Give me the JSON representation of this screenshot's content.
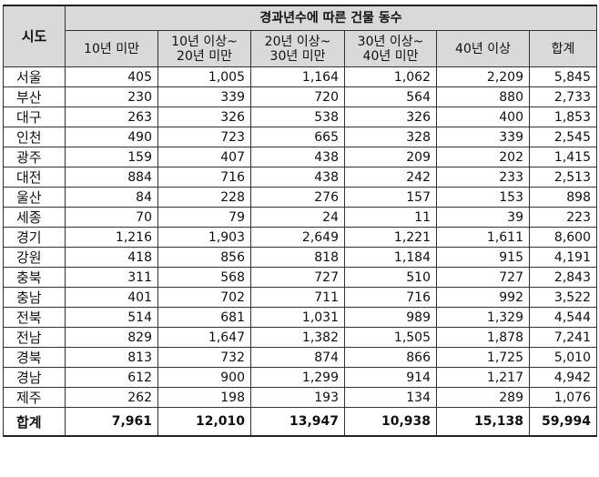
{
  "table": {
    "corner_header": "시도",
    "group_header": "경과년수에 따른 건물 동수",
    "columns": [
      [
        "10년 미만"
      ],
      [
        "10년 이상~",
        "20년 미만"
      ],
      [
        "20년 이상~",
        "30년 미만"
      ],
      [
        "30년 이상~",
        "40년 미만"
      ],
      [
        "40년 이상"
      ],
      [
        "합계"
      ]
    ],
    "rows": [
      {
        "region": "서울",
        "values": [
          "405",
          "1,005",
          "1,164",
          "1,062",
          "2,209",
          "5,845"
        ]
      },
      {
        "region": "부산",
        "values": [
          "230",
          "339",
          "720",
          "564",
          "880",
          "2,733"
        ]
      },
      {
        "region": "대구",
        "values": [
          "263",
          "326",
          "538",
          "326",
          "400",
          "1,853"
        ]
      },
      {
        "region": "인천",
        "values": [
          "490",
          "723",
          "665",
          "328",
          "339",
          "2,545"
        ]
      },
      {
        "region": "광주",
        "values": [
          "159",
          "407",
          "438",
          "209",
          "202",
          "1,415"
        ]
      },
      {
        "region": "대전",
        "values": [
          "884",
          "716",
          "438",
          "242",
          "233",
          "2,513"
        ]
      },
      {
        "region": "울산",
        "values": [
          "84",
          "228",
          "276",
          "157",
          "153",
          "898"
        ]
      },
      {
        "region": "세종",
        "values": [
          "70",
          "79",
          "24",
          "11",
          "39",
          "223"
        ]
      },
      {
        "region": "경기",
        "values": [
          "1,216",
          "1,903",
          "2,649",
          "1,221",
          "1,611",
          "8,600"
        ]
      },
      {
        "region": "강원",
        "values": [
          "418",
          "856",
          "818",
          "1,184",
          "915",
          "4,191"
        ]
      },
      {
        "region": "충북",
        "values": [
          "311",
          "568",
          "727",
          "510",
          "727",
          "2,843"
        ]
      },
      {
        "region": "충남",
        "values": [
          "401",
          "702",
          "711",
          "716",
          "992",
          "3,522"
        ]
      },
      {
        "region": "전북",
        "values": [
          "514",
          "681",
          "1,031",
          "989",
          "1,329",
          "4,544"
        ]
      },
      {
        "region": "전남",
        "values": [
          "829",
          "1,647",
          "1,382",
          "1,505",
          "1,878",
          "7,241"
        ]
      },
      {
        "region": "경북",
        "values": [
          "813",
          "732",
          "874",
          "866",
          "1,725",
          "5,010"
        ]
      },
      {
        "region": "경남",
        "values": [
          "612",
          "900",
          "1,299",
          "914",
          "1,217",
          "4,942"
        ]
      },
      {
        "region": "제주",
        "values": [
          "262",
          "198",
          "193",
          "134",
          "289",
          "1,076"
        ]
      }
    ],
    "total": {
      "region": "합계",
      "values": [
        "7,961",
        "12,010",
        "13,947",
        "10,938",
        "15,138",
        "59,994"
      ]
    }
  }
}
